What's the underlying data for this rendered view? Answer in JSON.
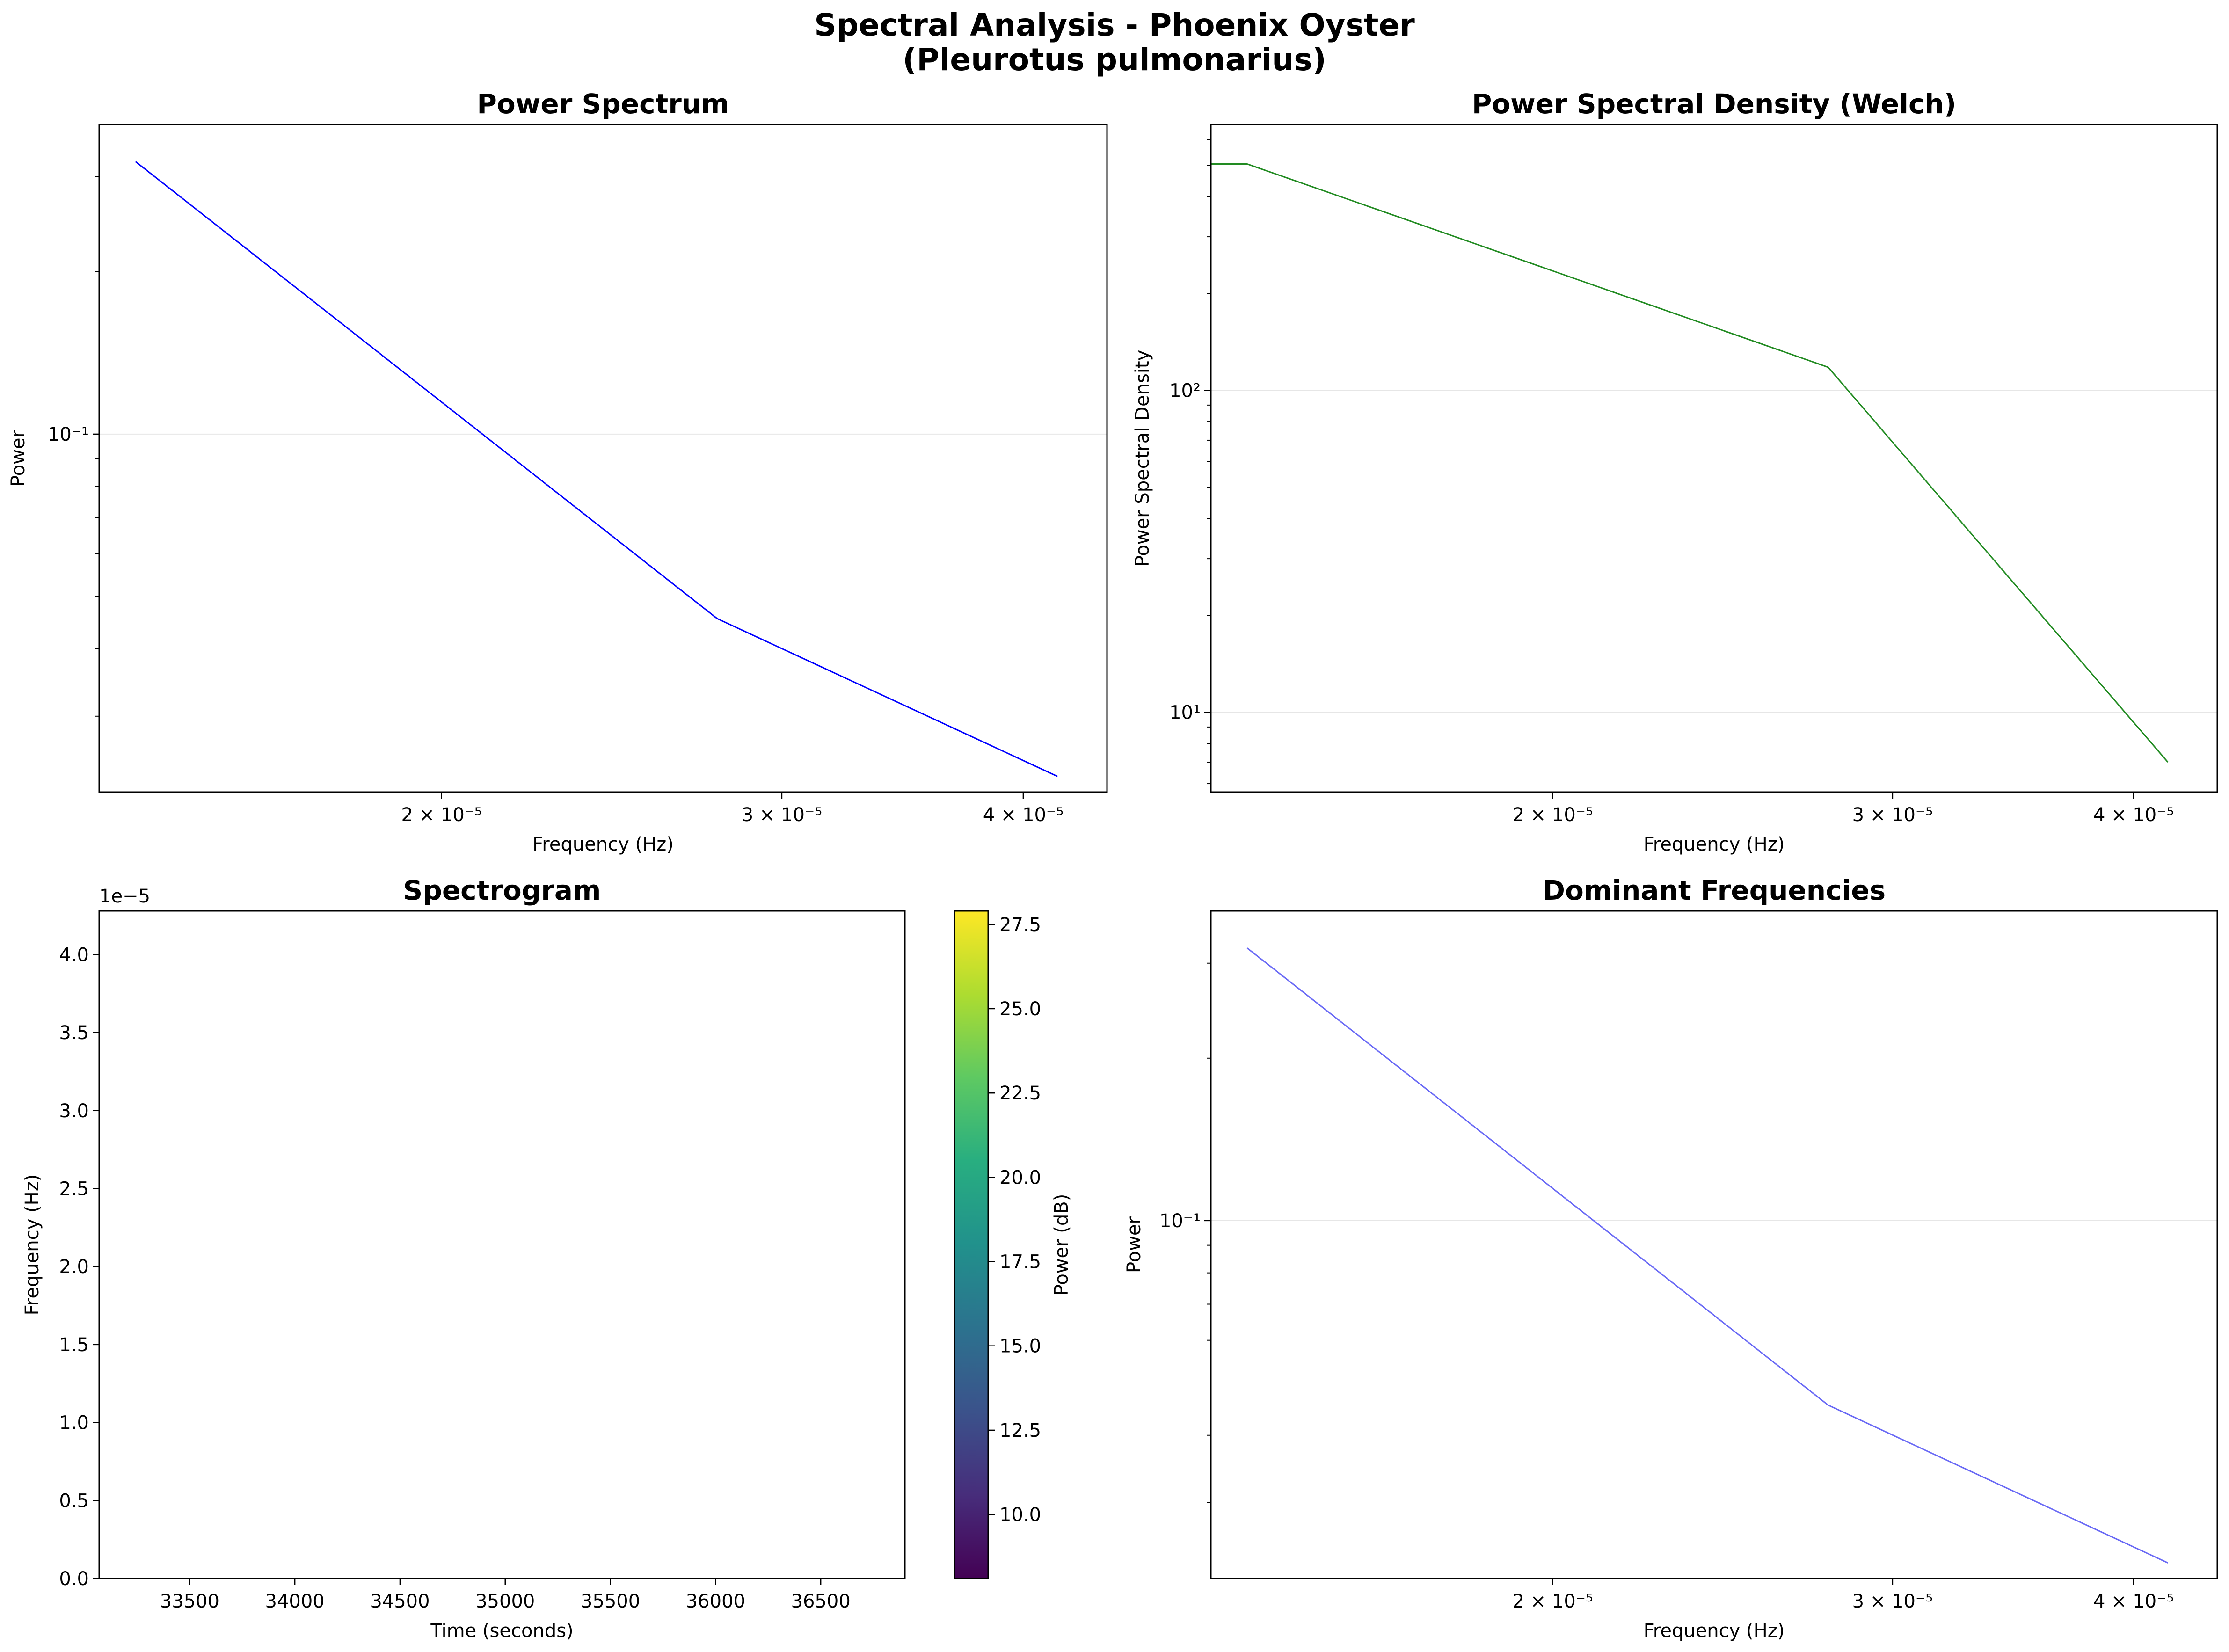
{
  "figure": {
    "title_line1": "Spectral Analysis - Phoenix Oyster",
    "title_line2": "(Pleurotus pulmonarius)"
  },
  "chart_data": [
    {
      "id": "power-spectrum",
      "type": "line",
      "title": "Power Spectrum",
      "xlabel": "Frequency (Hz)",
      "ylabel": "Power",
      "xscale": "log",
      "yscale": "log",
      "xlim": [
        1.33e-05,
        4.42e-05
      ],
      "ylim": [
        0.0217,
        0.375
      ],
      "grid": "y",
      "color": "#0000ff",
      "series": [
        {
          "x": [
            1.3889e-05,
            2.7778e-05,
            4.1667e-05
          ],
          "y": [
            0.32,
            0.0455,
            0.0232
          ]
        }
      ],
      "xticks": [
        {
          "value": 2e-05,
          "label": "2 × 10⁻⁵"
        },
        {
          "value": 3e-05,
          "label": "3 × 10⁻⁵"
        },
        {
          "value": 4e-05,
          "label": "4 × 10⁻⁵"
        }
      ],
      "yticks": [
        {
          "value": 0.1,
          "label": "10⁻¹"
        }
      ]
    },
    {
      "id": "welch-psd",
      "type": "line",
      "title": "Power Spectral Density (Welch)",
      "xlabel": "Frequency (Hz)",
      "ylabel": "Power Spectral Density",
      "xscale": "log",
      "yscale": "log",
      "xlim": [
        1.33e-05,
        4.42e-05
      ],
      "ylim": [
        5.65,
        670
      ],
      "grid": "y",
      "color": "#228b22",
      "series": [
        {
          "x": [
            1.33e-05,
            1.3889e-05,
            2.7778e-05,
            4.1667e-05
          ],
          "y": [
            505,
            505,
            118,
            7
          ]
        }
      ],
      "xticks": [
        {
          "value": 2e-05,
          "label": "2 × 10⁻⁵"
        },
        {
          "value": 3e-05,
          "label": "3 × 10⁻⁵"
        },
        {
          "value": 4e-05,
          "label": "4 × 10⁻⁵"
        }
      ],
      "yticks": [
        {
          "value": 10,
          "label": "10¹"
        },
        {
          "value": 100,
          "label": "10²"
        }
      ]
    },
    {
      "id": "spectrogram",
      "type": "heatmap",
      "title": "Spectrogram",
      "xlabel": "Time (seconds)",
      "ylabel": "Frequency (Hz)",
      "xlim": [
        33070,
        36900
      ],
      "ylim": [
        0,
        4.28e-05
      ],
      "offset_label": "1e−5",
      "xticks": [
        {
          "value": 33500,
          "label": "33500"
        },
        {
          "value": 34000,
          "label": "34000"
        },
        {
          "value": 34500,
          "label": "34500"
        },
        {
          "value": 35000,
          "label": "35000"
        },
        {
          "value": 35500,
          "label": "35500"
        },
        {
          "value": 36000,
          "label": "36000"
        },
        {
          "value": 36500,
          "label": "36500"
        }
      ],
      "yticks": [
        {
          "value": 0,
          "label": "0.0"
        },
        {
          "value": 5e-06,
          "label": "0.5"
        },
        {
          "value": 1e-05,
          "label": "1.0"
        },
        {
          "value": 1.5e-05,
          "label": "1.5"
        },
        {
          "value": 2e-05,
          "label": "2.0"
        },
        {
          "value": 2.5e-05,
          "label": "2.5"
        },
        {
          "value": 3e-05,
          "label": "3.0"
        },
        {
          "value": 3.5e-05,
          "label": "3.5"
        },
        {
          "value": 4e-05,
          "label": "4.0"
        }
      ],
      "colorbar": {
        "label": "Power (dB)",
        "range": [
          8.1,
          27.9
        ],
        "colormap": "viridis",
        "ticks": [
          {
            "value": 10.0,
            "label": "10.0"
          },
          {
            "value": 12.5,
            "label": "12.5"
          },
          {
            "value": 15.0,
            "label": "15.0"
          },
          {
            "value": 17.5,
            "label": "17.5"
          },
          {
            "value": 20.0,
            "label": "20.0"
          },
          {
            "value": 22.5,
            "label": "22.5"
          },
          {
            "value": 25.0,
            "label": "25.0"
          },
          {
            "value": 27.5,
            "label": "27.5"
          }
        ]
      }
    },
    {
      "id": "dominant-frequencies",
      "type": "line",
      "title": "Dominant Frequencies",
      "xlabel": "Frequency (Hz)",
      "ylabel": "Power",
      "xscale": "log",
      "yscale": "log",
      "xlim": [
        1.33e-05,
        4.42e-05
      ],
      "ylim": [
        0.0217,
        0.375
      ],
      "grid": "y",
      "color": "#6a6af5",
      "series": [
        {
          "x": [
            1.3889e-05,
            2.7778e-05,
            4.1667e-05
          ],
          "y": [
            0.32,
            0.0455,
            0.0232
          ]
        }
      ],
      "xticks": [
        {
          "value": 2e-05,
          "label": "2 × 10⁻⁵"
        },
        {
          "value": 3e-05,
          "label": "3 × 10⁻⁵"
        },
        {
          "value": 4e-05,
          "label": "4 × 10⁻⁵"
        }
      ],
      "yticks": [
        {
          "value": 0.1,
          "label": "10⁻¹"
        }
      ]
    }
  ]
}
